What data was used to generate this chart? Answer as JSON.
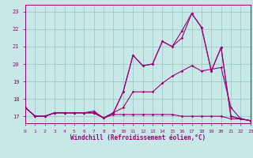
{
  "xlabel": "Windchill (Refroidissement éolien,°C)",
  "bg_color": "#c8e8e8",
  "grid_color": "#a0c8c8",
  "line_color": "#990077",
  "xlim": [
    0,
    23
  ],
  "ylim": [
    16.6,
    23.4
  ],
  "yticks": [
    17,
    18,
    19,
    20,
    21,
    22,
    23
  ],
  "xticks": [
    0,
    1,
    2,
    3,
    4,
    5,
    6,
    7,
    8,
    9,
    10,
    11,
    12,
    13,
    14,
    15,
    16,
    17,
    18,
    19,
    20,
    21,
    22,
    23
  ],
  "lines": [
    [
      17.5,
      17.0,
      17.0,
      17.2,
      17.2,
      17.2,
      17.2,
      17.2,
      16.9,
      17.1,
      17.1,
      17.1,
      17.1,
      17.1,
      17.1,
      17.1,
      17.0,
      17.0,
      17.0,
      17.0,
      17.0,
      16.85,
      16.85,
      16.75
    ],
    [
      17.5,
      17.0,
      17.0,
      17.2,
      17.2,
      17.2,
      17.2,
      17.2,
      16.9,
      17.2,
      17.5,
      18.4,
      18.4,
      18.4,
      18.9,
      19.3,
      19.6,
      19.9,
      19.6,
      19.7,
      19.8,
      17.5,
      16.85,
      16.75
    ],
    [
      17.5,
      17.0,
      17.0,
      17.2,
      17.2,
      17.2,
      17.2,
      17.2,
      16.9,
      17.2,
      18.4,
      20.5,
      19.9,
      20.0,
      21.3,
      21.0,
      21.5,
      22.9,
      22.1,
      19.6,
      20.95,
      17.0,
      16.85,
      16.75
    ],
    [
      17.5,
      17.0,
      17.0,
      17.2,
      17.2,
      17.2,
      17.2,
      17.3,
      16.9,
      17.2,
      18.4,
      20.5,
      19.9,
      20.0,
      21.3,
      21.0,
      21.9,
      22.9,
      22.1,
      19.6,
      20.95,
      17.0,
      16.85,
      16.75
    ]
  ]
}
